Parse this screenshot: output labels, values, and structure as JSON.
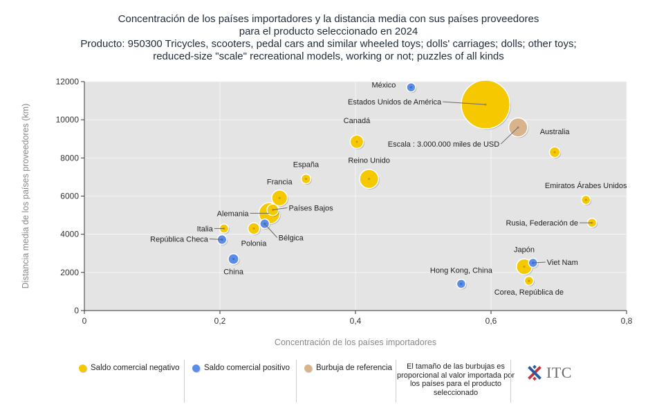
{
  "chart_data": {
    "type": "scatter",
    "title_lines": [
      "Concentración de los países importadores y la distancia media con sus países proveedores",
      "para el producto seleccionado en 2024",
      "Producto: 950300 Tricycles, scooters, pedal cars and similar wheeled toys; dolls' carriages; dolls; other toys;",
      "reduced-size \"scale\" recreational models, working or not; puzzles of all kinds"
    ],
    "xlabel": "Concentración de los países importadores",
    "ylabel": "Distancia media de los países proveedores (km)",
    "xlim": [
      0,
      0.8
    ],
    "ylim": [
      0,
      12000
    ],
    "x_ticks": [
      0,
      0.2,
      0.4,
      0.6,
      0.8
    ],
    "x_tick_labels": [
      "0",
      "0,2",
      "0,4",
      "0,6",
      "0,8"
    ],
    "y_ticks": [
      0,
      2000,
      4000,
      6000,
      8000,
      10000,
      12000
    ],
    "y_tick_labels": [
      "0",
      "2000",
      "4000",
      "6000",
      "8000",
      "10000",
      "12000"
    ],
    "grid": true,
    "colors": {
      "negative": "#f5c800",
      "positive": "#5b8de8",
      "reference": "#d9b38c"
    },
    "points": [
      {
        "label": "Estados Unidos de América",
        "x": 0.592,
        "y": 10800,
        "size": 10.6,
        "group": "negative"
      },
      {
        "label": "México",
        "x": 0.482,
        "y": 11700,
        "size": 0.3,
        "group": "positive"
      },
      {
        "label": "Canadá",
        "x": 0.402,
        "y": 8850,
        "size": 0.8,
        "group": "negative"
      },
      {
        "label": "Escala : 3.000.000 miles de USD",
        "x": 0.64,
        "y": 9600,
        "size": 1.6,
        "group": "reference"
      },
      {
        "label": "Australia",
        "x": 0.694,
        "y": 8300,
        "size": 0.5,
        "group": "negative"
      },
      {
        "label": "España",
        "x": 0.327,
        "y": 6900,
        "size": 0.4,
        "group": "negative"
      },
      {
        "label": "Reino Unido",
        "x": 0.42,
        "y": 6900,
        "size": 1.6,
        "group": "negative"
      },
      {
        "label": "Emiratos Árabes Unidos",
        "x": 0.74,
        "y": 5800,
        "size": 0.2,
        "group": "negative"
      },
      {
        "label": "Francia",
        "x": 0.288,
        "y": 5900,
        "size": 1.1,
        "group": "negative"
      },
      {
        "label": "Alemania",
        "x": 0.273,
        "y": 5100,
        "size": 2.0,
        "group": "negative"
      },
      {
        "label": "Países Bajos",
        "x": 0.278,
        "y": 5280,
        "size": 0.6,
        "group": "negative"
      },
      {
        "label": "Rusia, Federación de",
        "x": 0.749,
        "y": 4600,
        "size": 0.3,
        "group": "negative"
      },
      {
        "label": "Italia",
        "x": 0.206,
        "y": 4300,
        "size": 0.3,
        "group": "negative"
      },
      {
        "label": "Bélgica",
        "x": 0.266,
        "y": 4550,
        "size": 0.4,
        "group": "positive"
      },
      {
        "label": "Polonia",
        "x": 0.25,
        "y": 4300,
        "size": 0.6,
        "group": "negative"
      },
      {
        "label": "República Checa",
        "x": 0.203,
        "y": 3720,
        "size": 0.4,
        "group": "positive"
      },
      {
        "label": "China",
        "x": 0.22,
        "y": 2700,
        "size": 0.5,
        "group": "positive"
      },
      {
        "label": "Japón",
        "x": 0.649,
        "y": 2300,
        "size": 1.1,
        "group": "negative"
      },
      {
        "label": "Viet Nam",
        "x": 0.662,
        "y": 2500,
        "size": 0.3,
        "group": "positive"
      },
      {
        "label": "Hong Kong, China",
        "x": 0.556,
        "y": 1400,
        "size": 0.3,
        "group": "positive"
      },
      {
        "label": "Corea, República de",
        "x": 0.656,
        "y": 1560,
        "size": 0.2,
        "group": "negative"
      }
    ],
    "legend": [
      {
        "label": "Saldo comercial negativo",
        "group": "negative"
      },
      {
        "label": "Saldo comercial positivo",
        "group": "positive"
      },
      {
        "label": "Burbuja de referencia",
        "group": "reference"
      }
    ],
    "legend_note": "El tamaño de las burbujas es proporcional al valor importada por los países para el producto seleccionado"
  },
  "logo": {
    "text": "ITC"
  }
}
